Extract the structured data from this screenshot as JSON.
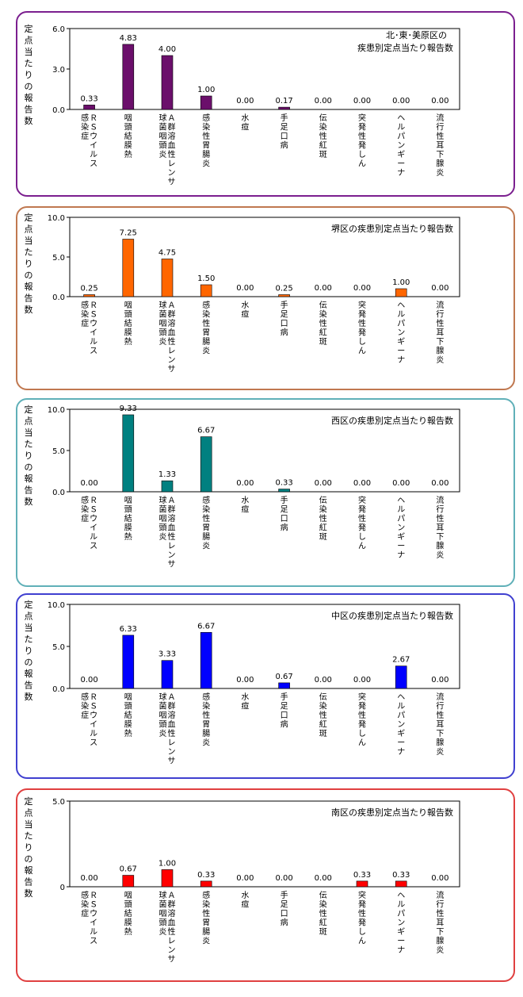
{
  "categories": [
    "ＲＳウイルス感染症",
    "咽頭結膜熱",
    "Ａ群溶血性レンサ球菌咽頭炎",
    "感染性胃腸炎",
    "水痘",
    "手足口病",
    "伝染性紅斑",
    "突発性発しん",
    "ヘルパンギーナ",
    "流行性耳下腺炎"
  ],
  "chart_data": [
    {
      "type": "bar",
      "title": "北･東･美原区の疾患別定点当たり報告数",
      "ylabel": "定点当たりの報告数",
      "ylim": [
        0,
        6.0
      ],
      "yticks": [
        "0.0",
        "3.0",
        "6.0"
      ],
      "categories_ref": "categories",
      "values": [
        0.33,
        4.83,
        4.0,
        1.0,
        0.0,
        0.17,
        0.0,
        0.0,
        0.0,
        0.0
      ],
      "value_labels": [
        "0.33",
        "4.83",
        "4.00",
        "1.00",
        "0.00",
        "0.17",
        "0.00",
        "0.00",
        "0.00",
        "0.00"
      ],
      "bar_color": "#6B0F6B",
      "border_color": "#7B1F8F"
    },
    {
      "type": "bar",
      "title": "堺区の疾患別定点当たり報告数",
      "ylabel": "定点当たりの報告数",
      "ylim": [
        0,
        10.0
      ],
      "yticks": [
        "0.0",
        "5.0",
        "10.0"
      ],
      "categories_ref": "categories",
      "values": [
        0.25,
        7.25,
        4.75,
        1.5,
        0.0,
        0.25,
        0.0,
        0.0,
        1.0,
        0.0
      ],
      "value_labels": [
        "0.25",
        "7.25",
        "4.75",
        "1.50",
        "0.00",
        "0.25",
        "0.00",
        "0.00",
        "1.00",
        "0.00"
      ],
      "bar_color": "#FF6600",
      "border_color": "#C07850"
    },
    {
      "type": "bar",
      "title": "西区の疾患別定点当たり報告数",
      "ylabel": "定点当たりの報告数",
      "ylim": [
        0,
        10.0
      ],
      "yticks": [
        "0.0",
        "5.0",
        "10.0"
      ],
      "categories_ref": "categories",
      "values": [
        0.0,
        9.33,
        1.33,
        6.67,
        0.0,
        0.33,
        0.0,
        0.0,
        0.0,
        0.0
      ],
      "value_labels": [
        "0.00",
        "9.33",
        "1.33",
        "6.67",
        "0.00",
        "0.33",
        "0.00",
        "0.00",
        "0.00",
        "0.00"
      ],
      "bar_color": "#008080",
      "border_color": "#60B0B8"
    },
    {
      "type": "bar",
      "title": "中区の疾患別定点当たり報告数",
      "ylabel": "定点当たりの報告数",
      "ylim": [
        0,
        10.0
      ],
      "yticks": [
        "0.0",
        "5.0",
        "10.0"
      ],
      "categories_ref": "categories",
      "values": [
        0.0,
        6.33,
        3.33,
        6.67,
        0.0,
        0.67,
        0.0,
        0.0,
        2.67,
        0.0
      ],
      "value_labels": [
        "0.00",
        "6.33",
        "3.33",
        "6.67",
        "0.00",
        "0.67",
        "0.00",
        "0.00",
        "2.67",
        "0.00"
      ],
      "bar_color": "#0000FF",
      "border_color": "#4040D0"
    },
    {
      "type": "bar",
      "title": "南区の疾患別定点当たり報告数",
      "ylabel": "定点当たりの報告数",
      "ylim": [
        0,
        5.0
      ],
      "yticks": [
        "0",
        "5.0"
      ],
      "categories_ref": "categories",
      "values": [
        0.0,
        0.67,
        1.0,
        0.33,
        0.0,
        0.0,
        0.0,
        0.33,
        0.33,
        0.0
      ],
      "value_labels": [
        "0.00",
        "0.67",
        "1.00",
        "0.33",
        "0.00",
        "0.00",
        "0.00",
        "0.33",
        "0.33",
        "0.00"
      ],
      "bar_color": "#FF0000",
      "border_color": "#E04040"
    }
  ]
}
